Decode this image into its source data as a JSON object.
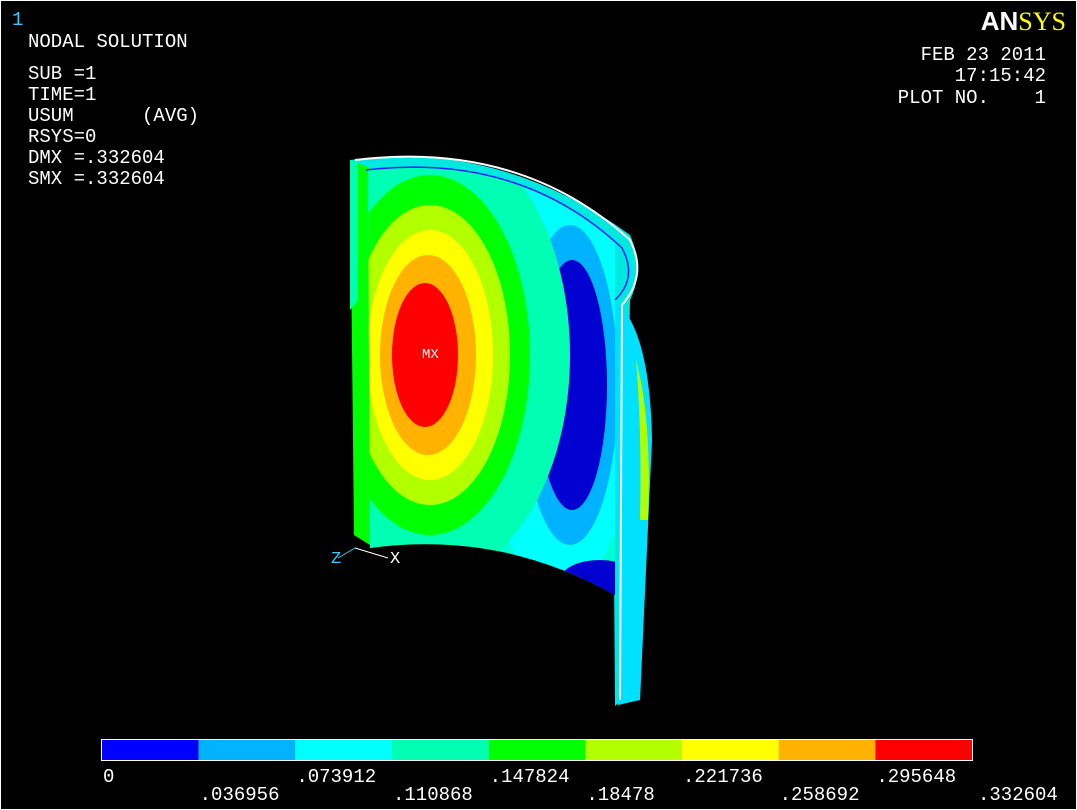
{
  "window_number": "1",
  "info": [
    "NODAL SOLUTION",
    "SUB =1",
    "TIME=1",
    "USUM      (AVG)",
    "RSYS=0",
    "DMX =.332604",
    "SMX =.332604"
  ],
  "logo": {
    "part1": "AN",
    "part2": "SYS"
  },
  "date": "FEB 23 2011",
  "time": "17:15:42",
  "plot_no": "PLOT NO.    1",
  "max_label": "MX",
  "triad": {
    "z": "Z",
    "x": "X"
  },
  "legend": {
    "colors": [
      "#0000ff",
      "#00b2ff",
      "#00ffff",
      "#00ffb2",
      "#00ff00",
      "#b2ff00",
      "#ffff00",
      "#ffb200",
      "#ff0000"
    ],
    "labels": [
      "0",
      ".036956",
      ".073912",
      ".110868",
      ".147824",
      ".18478",
      ".221736",
      ".258692",
      ".295648",
      ".332604"
    ]
  }
}
